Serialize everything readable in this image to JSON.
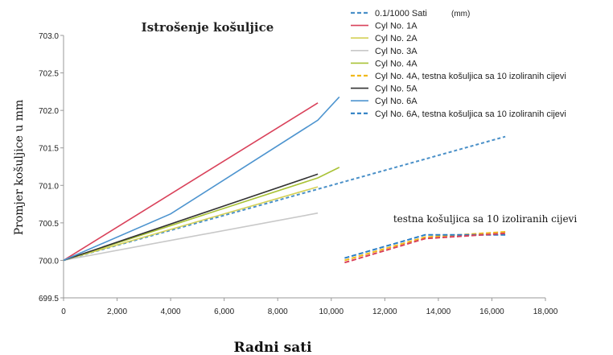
{
  "chart_data": {
    "type": "line",
    "title": "Istrošenje košuljice",
    "xlabel": "Radni sati",
    "ylabel": "Promjer košuljice u mm",
    "unit_label": "(mm)",
    "annotation": "testna košuljica sa 10 izoliranih cijevi",
    "xlim": [
      0,
      18000
    ],
    "ylim": [
      699.5,
      703.0
    ],
    "x_ticks": [
      0,
      2000,
      4000,
      6000,
      8000,
      10000,
      12000,
      14000,
      16000,
      18000
    ],
    "x_tick_labels": [
      "0",
      "2,000",
      "4,000",
      "6,000",
      "8,000",
      "10,000",
      "12,000",
      "14,000",
      "16,000",
      "18,000"
    ],
    "y_ticks": [
      699.5,
      700.0,
      700.5,
      701.0,
      701.5,
      702.0,
      702.5,
      703.0
    ],
    "y_tick_labels": [
      "699.5",
      "700.0",
      "700.5",
      "701.0",
      "701.5",
      "702.0",
      "702.5",
      "703.0"
    ],
    "grid": false,
    "legend_position": "top-right",
    "series": [
      {
        "name": "0.1/1000 Sati",
        "color": "#4a90c8",
        "dash": true,
        "x": [
          0,
          16500
        ],
        "y": [
          700.0,
          701.65
        ]
      },
      {
        "name": "Cyl No. 1A",
        "color": "#d9415a",
        "dash": false,
        "x": [
          0,
          9500
        ],
        "y": [
          700.0,
          702.1
        ]
      },
      {
        "name": "Cyl No. 2A",
        "color": "#d4d056",
        "dash": false,
        "x": [
          0,
          9500
        ],
        "y": [
          700.0,
          700.98
        ]
      },
      {
        "name": "Cyl No. 3A",
        "color": "#c8c8c8",
        "dash": false,
        "x": [
          0,
          9500
        ],
        "y": [
          700.0,
          700.63
        ]
      },
      {
        "name": "Cyl No. 4A",
        "color": "#a9c236",
        "dash": false,
        "x": [
          0,
          9500,
          10300
        ],
        "y": [
          700.0,
          701.1,
          701.24
        ]
      },
      {
        "name": "Cyl No. 4A, testna košuljica sa 10 izoliranih cijevi",
        "color": "#f0b91c",
        "dash": true,
        "x": [
          10500,
          13500,
          16500
        ],
        "y": [
          700.0,
          700.31,
          700.38
        ]
      },
      {
        "name": "Cyl No. 5A",
        "color": "#333333",
        "dash": false,
        "x": [
          0,
          9500
        ],
        "y": [
          700.0,
          701.15
        ]
      },
      {
        "name": "Cyl No. 6A",
        "color": "#4d94cf",
        "dash": false,
        "x": [
          0,
          4000,
          9500,
          10300
        ],
        "y": [
          700.0,
          700.62,
          701.87,
          702.18
        ]
      },
      {
        "name": "Cyl No. 6A, testna košuljica sa 10 izoliranih cijevi",
        "color": "#2d7fc4",
        "dash": true,
        "x": [
          10500,
          13500,
          16500
        ],
        "y": [
          700.03,
          700.34,
          700.34
        ]
      },
      {
        "name": "",
        "color": "#d9415a",
        "dash": true,
        "in_legend": false,
        "x": [
          10500,
          13500,
          16500
        ],
        "y": [
          699.97,
          700.29,
          700.36
        ]
      }
    ]
  }
}
